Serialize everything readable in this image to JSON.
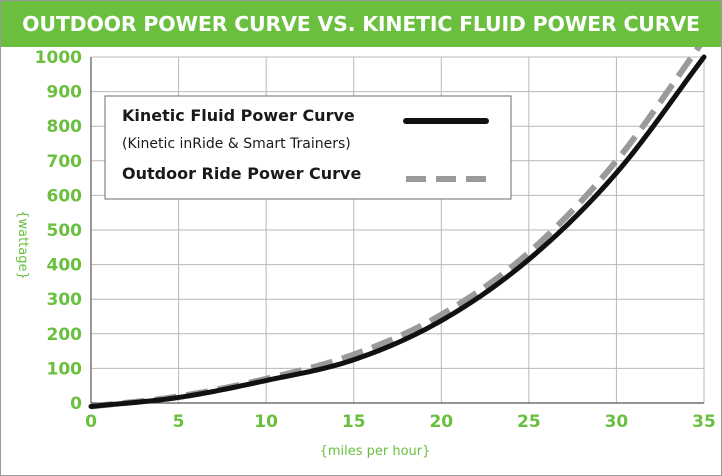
{
  "title": "OUTDOOR POWER CURVE VS. KINETIC FLUID POWER CURVE",
  "colors": {
    "banner": "#6abf3f",
    "tick_text": "#6abf3f",
    "kinetic_line": "#111111",
    "outdoor_line": "#9a9a9a",
    "grid": "#b8b8b8"
  },
  "chart_data": {
    "type": "line",
    "title": "OUTDOOR POWER CURVE VS. KINETIC FLUID POWER CURVE",
    "xlabel": "{miles per hour}",
    "ylabel": "{wattage}",
    "xlim": [
      0,
      35
    ],
    "ylim": [
      0,
      1000
    ],
    "x_ticks": [
      0,
      5,
      10,
      15,
      20,
      25,
      30,
      35
    ],
    "y_ticks": [
      0,
      100,
      200,
      300,
      400,
      500,
      600,
      700,
      800,
      900,
      1000
    ],
    "grid": true,
    "legend_position": "top-left",
    "series": [
      {
        "name": "Kinetic Fluid Power Curve",
        "note": "(Kinetic inRide & Smart Trainers)",
        "style": "solid",
        "color": "#111111",
        "x": [
          0,
          5,
          10,
          15,
          20,
          25,
          30,
          35
        ],
        "y": [
          -10,
          16,
          65,
          125,
          238,
          415,
          665,
          1000
        ]
      },
      {
        "name": "Outdoor Ride Power Curve",
        "style": "dashed",
        "color": "#9a9a9a",
        "x": [
          0,
          5,
          10,
          15,
          20,
          25,
          30,
          35
        ],
        "y": [
          -10,
          19,
          70,
          140,
          255,
          435,
          700,
          1050
        ]
      }
    ]
  }
}
